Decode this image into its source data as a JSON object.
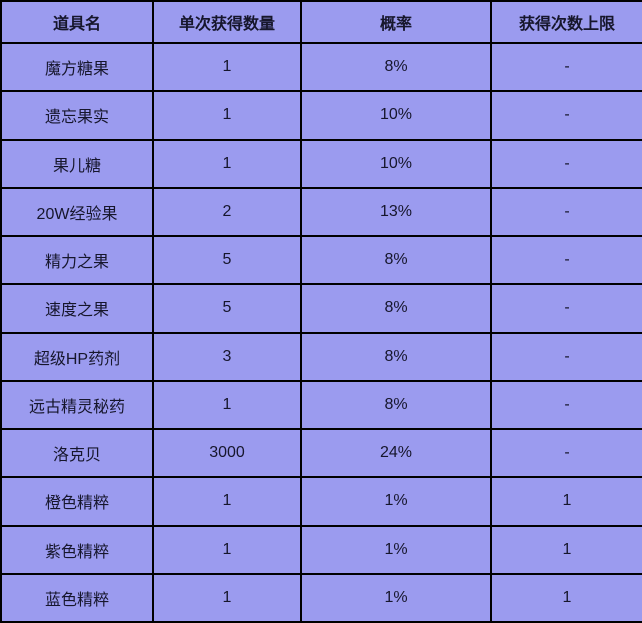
{
  "colors": {
    "cell_background": "#9b9bef",
    "border_color": "#000000",
    "text_color": "#16162c"
  },
  "chart_data": {
    "type": "table",
    "title": "",
    "columns": [
      "道具名",
      "单次获得数量",
      "概率",
      "获得次数上限"
    ],
    "rows": [
      [
        "魔方糖果",
        "1",
        "8%",
        "-"
      ],
      [
        "遗忘果实",
        "1",
        "10%",
        "-"
      ],
      [
        "果儿糖",
        "1",
        "10%",
        "-"
      ],
      [
        "20W经验果",
        "2",
        "13%",
        "-"
      ],
      [
        "精力之果",
        "5",
        "8%",
        "-"
      ],
      [
        "速度之果",
        "5",
        "8%",
        "-"
      ],
      [
        "超级HP药剂",
        "3",
        "8%",
        "-"
      ],
      [
        "远古精灵秘药",
        "1",
        "8%",
        "-"
      ],
      [
        "洛克贝",
        "3000",
        "24%",
        "-"
      ],
      [
        "橙色精粹",
        "1",
        "1%",
        "1"
      ],
      [
        "紫色精粹",
        "1",
        "1%",
        "1"
      ],
      [
        "蓝色精粹",
        "1",
        "1%",
        "1"
      ]
    ]
  }
}
